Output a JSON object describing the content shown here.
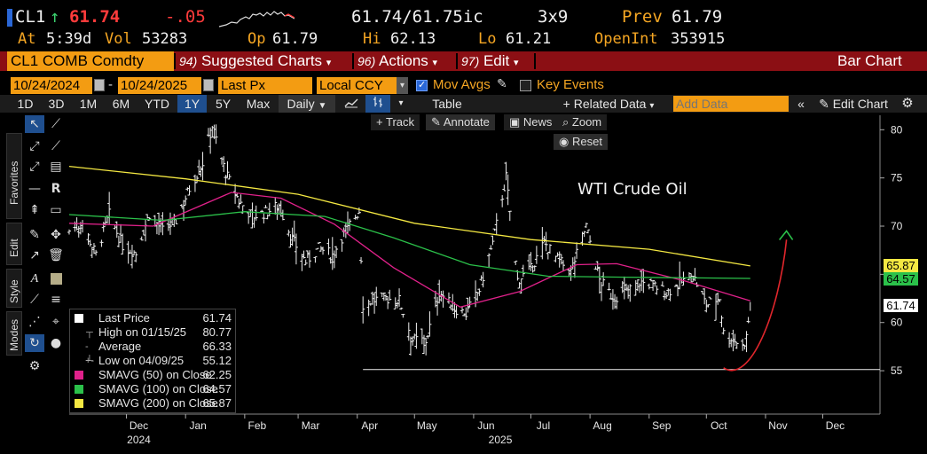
{
  "header": {
    "ticker": "CL1",
    "change_arrow": "↑",
    "last": "61.74",
    "net_change": "-.05",
    "bid_ask": "61.74/61.75ic",
    "size": "3x9",
    "prev_label": "Prev",
    "prev": "61.79",
    "at_label": "At",
    "time": "5:39d",
    "vol_label": "Vol",
    "vol": "53283",
    "op_label": "Op",
    "op": "61.79",
    "hi_label": "Hi",
    "hi": "62.13",
    "lo_label": "Lo",
    "lo": "61.21",
    "oi_label": "OpenInt",
    "oi": "353915"
  },
  "funcbar": {
    "security": "CL1 COMB Comdty",
    "suggested_num": "94)",
    "suggested": "Suggested Charts",
    "actions_num": "96)",
    "actions": "Actions",
    "edit_num": "97)",
    "edit": "Edit",
    "title": "Bar Chart"
  },
  "datebar": {
    "start_date": "10/24/2024",
    "dash": "-",
    "end_date": "10/24/2025",
    "field": "Last Px",
    "currency": "Local CCY",
    "mov_avgs": "Mov Avgs",
    "key_events": "Key Events"
  },
  "toolbar": {
    "ranges": [
      "1D",
      "3D",
      "1M",
      "6M",
      "YTD",
      "1Y",
      "5Y",
      "Max"
    ],
    "active_range": "1Y",
    "period": "Daily",
    "table": "Table",
    "related_data": "Related Data",
    "add_data_placeholder": "Add Data",
    "edit_chart": "Edit Chart"
  },
  "palette": {
    "tabs": [
      "Favorites",
      "Edit",
      "Style",
      "Modes"
    ]
  },
  "overlay": {
    "track": "Track",
    "annotate": "Annotate",
    "news": "News",
    "zoom": "Zoom",
    "reset": "Reset",
    "annotation": "WTI Crude Oil"
  },
  "legend": [
    {
      "name": "Last Price",
      "value": "61.74",
      "color": "#ffffff"
    },
    {
      "name": "High on 01/15/25",
      "value": "80.77",
      "color": ""
    },
    {
      "name": "Average",
      "value": "66.33",
      "color": ""
    },
    {
      "name": "Low on 04/09/25",
      "value": "55.12",
      "color": ""
    },
    {
      "name": "SMAVG (50)  on Close",
      "value": "62.25",
      "color": "#e0218a"
    },
    {
      "name": "SMAVG (100)  on Close",
      "value": "64.57",
      "color": "#2bc14a"
    },
    {
      "name": "SMAVG (200)  on Close",
      "value": "65.87",
      "color": "#f4e842"
    }
  ],
  "price_tags": [
    {
      "value": "65.87",
      "color": "#f4e842"
    },
    {
      "value": "64.57",
      "color": "#2bc14a"
    },
    {
      "value": "61.74",
      "color": "#ffffff"
    }
  ],
  "chart_data": {
    "type": "bar",
    "title": "WTI Crude Oil",
    "x_ticks": [
      "Dec",
      "Jan",
      "Feb",
      "Mar",
      "Apr",
      "May",
      "Jun",
      "Jul",
      "Aug",
      "Sep",
      "Oct",
      "Nov",
      "Dec"
    ],
    "x_year_labels": [
      "2024",
      "2025"
    ],
    "y_ticks": [
      55,
      60,
      65,
      70,
      75,
      80
    ],
    "ylim": [
      50.5,
      81.5
    ],
    "low_line": 55.12,
    "price_series": [
      [
        "2024-11-01",
        69.5
      ],
      [
        "2024-11-08",
        70.3
      ],
      [
        "2024-11-15",
        67.0
      ],
      [
        "2024-11-22",
        71.2
      ],
      [
        "2024-11-29",
        68.0
      ],
      [
        "2024-12-06",
        67.2
      ],
      [
        "2024-12-13",
        71.3
      ],
      [
        "2024-12-20",
        69.5
      ],
      [
        "2024-12-27",
        70.6
      ],
      [
        "2025-01-03",
        73.9
      ],
      [
        "2025-01-10",
        76.6
      ],
      [
        "2025-01-15",
        80.4
      ],
      [
        "2025-01-22",
        75.5
      ],
      [
        "2025-01-29",
        72.6
      ],
      [
        "2025-02-05",
        71.0
      ],
      [
        "2025-02-12",
        71.4
      ],
      [
        "2025-02-19",
        72.2
      ],
      [
        "2025-02-26",
        68.6
      ],
      [
        "2025-03-05",
        66.3
      ],
      [
        "2025-03-12",
        67.7
      ],
      [
        "2025-03-19",
        67.0
      ],
      [
        "2025-03-26",
        69.6
      ],
      [
        "2025-04-02",
        71.6
      ],
      [
        "2025-04-04",
        61.9
      ],
      [
        "2025-04-09",
        62.3
      ],
      [
        "2025-04-16",
        62.5
      ],
      [
        "2025-04-23",
        62.3
      ],
      [
        "2025-04-30",
        58.2
      ],
      [
        "2025-05-07",
        58.1
      ],
      [
        "2025-05-14",
        63.2
      ],
      [
        "2025-05-21",
        61.6
      ],
      [
        "2025-05-28",
        60.9
      ],
      [
        "2025-06-04",
        63.4
      ],
      [
        "2025-06-11",
        68.2
      ],
      [
        "2025-06-18",
        75.1
      ],
      [
        "2025-06-24",
        64.4
      ],
      [
        "2025-07-01",
        65.5
      ],
      [
        "2025-07-08",
        68.3
      ],
      [
        "2025-07-15",
        66.5
      ],
      [
        "2025-07-22",
        65.3
      ],
      [
        "2025-07-30",
        70.0
      ],
      [
        "2025-08-06",
        64.4
      ],
      [
        "2025-08-13",
        62.6
      ],
      [
        "2025-08-20",
        63.2
      ],
      [
        "2025-08-27",
        64.2
      ],
      [
        "2025-09-03",
        63.9
      ],
      [
        "2025-09-10",
        63.1
      ],
      [
        "2025-09-17",
        64.1
      ],
      [
        "2025-09-24",
        64.9
      ],
      [
        "2025-10-01",
        61.8
      ],
      [
        "2025-10-08",
        62.6
      ],
      [
        "2025-10-10",
        58.9
      ],
      [
        "2025-10-15",
        58.3
      ],
      [
        "2025-10-20",
        57.5
      ],
      [
        "2025-10-22",
        58.5
      ],
      [
        "2025-10-24",
        61.74
      ]
    ],
    "series": [
      {
        "name": "SMAVG (50) on Close",
        "last": 62.25,
        "color": "#e0218a",
        "points": [
          [
            "2024-11-01",
            70.3
          ],
          [
            "2024-12-15",
            70.0
          ],
          [
            "2025-01-25",
            73.5
          ],
          [
            "2025-02-20",
            72.9
          ],
          [
            "2025-03-20",
            70.2
          ],
          [
            "2025-04-20",
            65.7
          ],
          [
            "2025-05-25",
            61.6
          ],
          [
            "2025-06-25",
            63.2
          ],
          [
            "2025-07-25",
            66.0
          ],
          [
            "2025-08-15",
            66.1
          ],
          [
            "2025-09-20",
            64.3
          ],
          [
            "2025-10-24",
            62.25
          ]
        ]
      },
      {
        "name": "SMAVG (100) on Close",
        "last": 64.57,
        "color": "#2bc14a",
        "points": [
          [
            "2024-11-01",
            71.2
          ],
          [
            "2024-12-20",
            70.6
          ],
          [
            "2025-02-01",
            71.5
          ],
          [
            "2025-03-15",
            71.0
          ],
          [
            "2025-04-20",
            68.8
          ],
          [
            "2025-05-30",
            66.0
          ],
          [
            "2025-07-10",
            64.8
          ],
          [
            "2025-08-20",
            64.7
          ],
          [
            "2025-10-24",
            64.57
          ]
        ]
      },
      {
        "name": "SMAVG (200) on Close",
        "last": 65.87,
        "color": "#f4e842",
        "points": [
          [
            "2024-11-01",
            76.2
          ],
          [
            "2025-01-01",
            74.9
          ],
          [
            "2025-03-01",
            73.3
          ],
          [
            "2025-05-01",
            70.3
          ],
          [
            "2025-07-01",
            68.6
          ],
          [
            "2025-09-01",
            67.6
          ],
          [
            "2025-10-24",
            65.87
          ]
        ]
      }
    ],
    "annotation_arrow": {
      "color": "#e0262c",
      "points": [
        [
          "2025-10-10",
          55.3
        ],
        [
          "2025-10-24",
          54.8
        ],
        [
          "2025-11-08",
          61.0
        ],
        [
          "2025-11-12",
          68.6
        ]
      ]
    },
    "projection_arrow": {
      "color": "#2bc14a",
      "points": [
        [
          "2025-11-10",
          68.3
        ],
        [
          "2025-11-12",
          69.5
        ]
      ]
    }
  }
}
